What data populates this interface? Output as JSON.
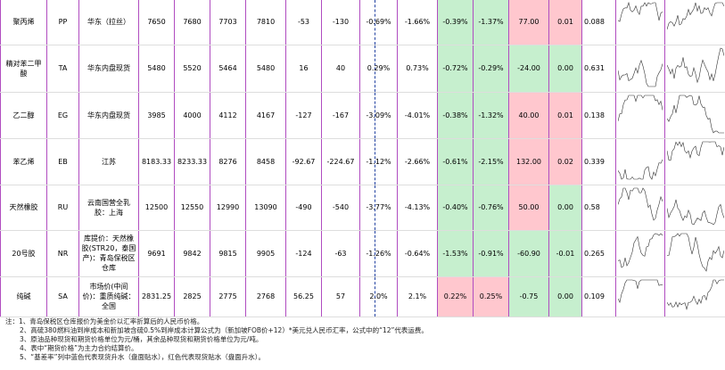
{
  "table": {
    "rows": [
      [
        "聚丙烯",
        "PP",
        "华东（拉丝）",
        "7650",
        "7680",
        "7703",
        "7810",
        "-53",
        "-130",
        "-0.69%",
        "-1.66%",
        "-0.39%",
        "-1.37%",
        "77.00",
        "0.01",
        "0.088"
      ],
      [
        "精对苯二甲酸",
        "TA",
        "华东内盘现货",
        "5480",
        "5520",
        "5464",
        "5480",
        "16",
        "40",
        "0.29%",
        "0.73%",
        "-0.72%",
        "-0.29%",
        "-24.00",
        "0.00",
        "0.631"
      ],
      [
        "乙二醇",
        "EG",
        "华东内盘现货",
        "3985",
        "4000",
        "4112",
        "4167",
        "-127",
        "-167",
        "-3.09%",
        "-4.01%",
        "-0.38%",
        "-1.32%",
        "40.00",
        "0.01",
        "0.138"
      ],
      [
        "苯乙烯",
        "EB",
        "江苏",
        "8183.33",
        "8233.33",
        "8276",
        "8458",
        "-92.67",
        "-224.67",
        "-1.12%",
        "-2.66%",
        "-0.61%",
        "-2.15%",
        "132.00",
        "0.02",
        "0.339"
      ],
      [
        "天然橡胶",
        "RU",
        "云南国营全乳胶：上海",
        "12500",
        "12550",
        "12990",
        "13090",
        "-490",
        "-540",
        "-3.77%",
        "-4.13%",
        "-0.40%",
        "-0.76%",
        "50.00",
        "0.00",
        "0.58"
      ],
      [
        "20号胶",
        "NR",
        "库提价：天然橡胶(STR20，泰国产)：青岛保税区仓库",
        "9691",
        "9842",
        "9815",
        "9905",
        "-124",
        "-63",
        "-1.26%",
        "-0.64%",
        "-1.53%",
        "-0.91%",
        "-60.90",
        "-0.01",
        "0.265"
      ],
      [
        "纯碱",
        "SA",
        "市场价(中间价)：重质纯碱：全国",
        "2831.25",
        "2825",
        "2775",
        "2768",
        "56.25",
        "57",
        "2.0%",
        "2.1%",
        "0.22%",
        "0.25%",
        "-0.75",
        "0.00",
        "0.109"
      ]
    ]
  },
  "notes": [
    "注：1、青岛保税区仓库报价为美金价以汇率折算后的人民币价格。",
    "2、高硫380燃料油到岸成本和新加坡含硫0.5%到岸成本计算公式为（新加坡FOB价+12）*美元兑人民币汇率，公式中的“12”代表运费。",
    "3、原油品种现货和期货价格单位为元/桶，其余品种现货和期货价格单位为元/吨。",
    "4、表中“期货价格”为主力合约结算价。",
    "5、“基差率”列中蓝色代表现货升水（盘面贴水），红色代表现货贴水（盘面升水）。"
  ]
}
